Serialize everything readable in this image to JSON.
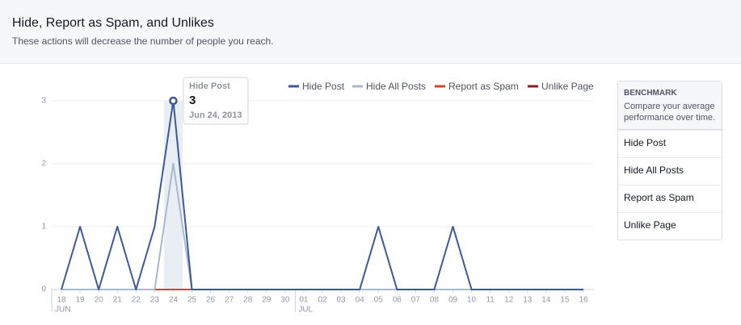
{
  "header": {
    "title": "Hide, Report as Spam, and Unlikes",
    "subtitle": "These actions will decrease the number of people you reach."
  },
  "chart_data": {
    "type": "line",
    "categories": [
      "18",
      "19",
      "20",
      "21",
      "22",
      "23",
      "24",
      "25",
      "26",
      "27",
      "28",
      "29",
      "30",
      "01",
      "02",
      "03",
      "04",
      "05",
      "06",
      "07",
      "08",
      "09",
      "10",
      "11",
      "12",
      "13",
      "14",
      "15",
      "16"
    ],
    "months": [
      "JUN",
      "JUL"
    ],
    "series": [
      {
        "name": "Hide Post",
        "color": "#3b5998",
        "values": [
          0,
          1,
          0,
          1,
          0,
          1,
          3,
          0,
          0,
          0,
          0,
          0,
          0,
          0,
          0,
          0,
          0,
          1,
          0,
          0,
          0,
          1,
          0,
          0,
          0,
          0,
          0,
          0,
          0
        ]
      },
      {
        "name": "Hide All Posts",
        "color": "#a9b9cc",
        "values": [
          0,
          0,
          0,
          0,
          0,
          0,
          2,
          0,
          0,
          0,
          0,
          0,
          0,
          0,
          0,
          0,
          0,
          0,
          0,
          0,
          0,
          0,
          0,
          0,
          0,
          0,
          0,
          0,
          0
        ]
      },
      {
        "name": "Report as Spam",
        "color": "#d8412f",
        "values": [
          0,
          0,
          0,
          0,
          0,
          0,
          0,
          0,
          0,
          0,
          0,
          0,
          0,
          0,
          0,
          0,
          0,
          0,
          0,
          0,
          0,
          0,
          0,
          0,
          0,
          0,
          0,
          0,
          0
        ]
      },
      {
        "name": "Unlike Page",
        "color": "#8b1c1c",
        "values": [
          0,
          0,
          0,
          0,
          0,
          0,
          0,
          0,
          0,
          0,
          0,
          0,
          0,
          0,
          0,
          0,
          0,
          0,
          0,
          0,
          0,
          0,
          0,
          0,
          0,
          0,
          0,
          0,
          0
        ]
      }
    ],
    "ylim": [
      0,
      3
    ],
    "yticks": [
      0,
      1,
      2,
      3
    ],
    "grid": true,
    "tooltip": {
      "date": "Jun 24, 2013"
    }
  },
  "benchmark": {
    "title": "BENCHMARK",
    "description": "Compare your average performance over time.",
    "items": [
      "Hide Post",
      "Hide All Posts",
      "Report as Spam",
      "Unlike Page"
    ]
  }
}
